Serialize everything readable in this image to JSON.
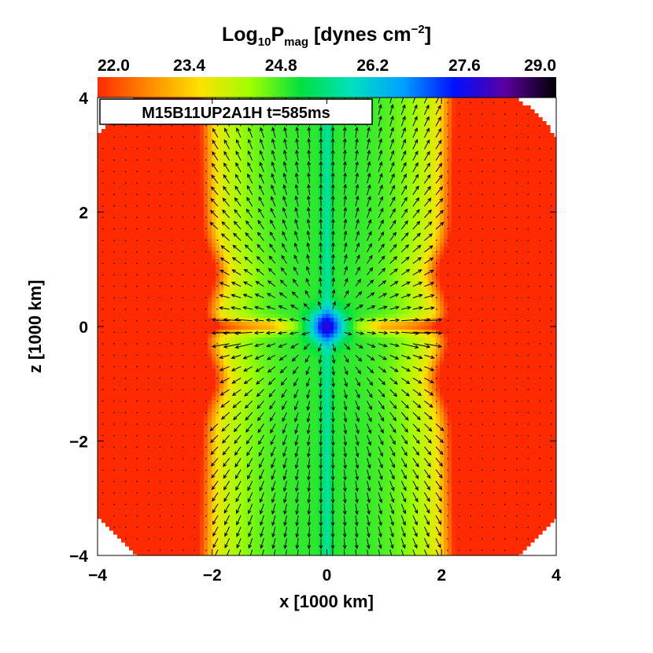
{
  "chart_data": {
    "type": "heatmap",
    "title": {
      "prefix": "Log",
      "base_sub": "10",
      "p": "P",
      "p_sub": "mag",
      "units": " [dynes cm",
      "units_sup": "−2",
      "units_end": "]"
    },
    "annotation": "M15B11UP2A1H t=585ms",
    "colorbar": {
      "min": 22.0,
      "max": 29.0,
      "tick_labels": [
        "22.0",
        "23.4",
        "24.8",
        "26.2",
        "27.6",
        "29.0"
      ],
      "tick_values": [
        22.0,
        23.4,
        24.8,
        26.2,
        27.6,
        29.0
      ],
      "colormap": [
        "#ff2a00",
        "#ff8a00",
        "#ffe000",
        "#a0ff00",
        "#00e040",
        "#00e0c0",
        "#00a0ff",
        "#0010ff",
        "#5a00a0",
        "#000000"
      ]
    },
    "xlabel": "x [1000 km]",
    "ylabel": "z [1000 km]",
    "xlim": [
      -4,
      4
    ],
    "ylim": [
      -4,
      4
    ],
    "x_ticks": [
      -4,
      -2,
      0,
      2,
      4
    ],
    "y_ticks": [
      -4,
      -2,
      0,
      2,
      4
    ],
    "x_tick_labels": [
      "−4",
      "−2",
      "0",
      "2",
      "4"
    ],
    "y_tick_labels": [
      "−4",
      "−2",
      "0",
      "2",
      "4"
    ],
    "domain_radius": 5.2,
    "field": {
      "background_value": 22.0,
      "lobe_half_width_at_z0": 1.85,
      "lobe_half_width_at_z4": 1.95,
      "lobe_waist_half_width": 1.65,
      "axis_jet_value": 25.7,
      "core_value": 27.8
    },
    "colors": {
      "background_red": "#ff2a00",
      "arrow": "#000000"
    }
  }
}
